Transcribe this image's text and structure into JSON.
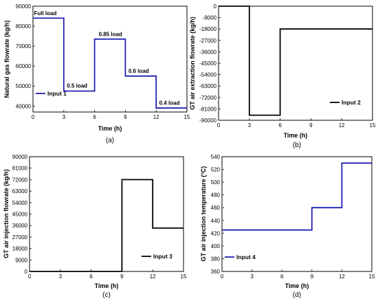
{
  "chart_data": [
    {
      "id": "a",
      "type": "line",
      "caption": "(a)",
      "xlabel": "Time (h)",
      "ylabel": "Natural gas flowrate (kg/h)",
      "xlim": [
        0,
        15
      ],
      "ylim": [
        37000,
        90000
      ],
      "xticks": [
        "0",
        "3",
        "6",
        "9",
        "12",
        "15"
      ],
      "yticks": [
        "40000",
        "50000",
        "60000",
        "70000",
        "80000",
        "90000"
      ],
      "series": [
        {
          "name": "Input 1",
          "color": "#1f1fb4",
          "x": [
            0,
            3,
            3,
            6,
            6,
            9,
            9,
            12,
            12,
            15
          ],
          "y": [
            84000,
            84000,
            47500,
            47500,
            73500,
            73500,
            55000,
            55000,
            39000,
            39000
          ]
        }
      ],
      "annotations": [
        {
          "text": "Full load",
          "x": 0.1,
          "y": 85500
        },
        {
          "text": "0.5 load",
          "x": 3.3,
          "y": 49200
        },
        {
          "text": "0.85 load",
          "x": 6.4,
          "y": 75000
        },
        {
          "text": "0.6 load",
          "x": 9.3,
          "y": 56700
        },
        {
          "text": "0.4 load",
          "x": 12.3,
          "y": 40600
        }
      ],
      "legend_position": "bottom-left"
    },
    {
      "id": "b",
      "type": "line",
      "caption": "(b)",
      "xlabel": "Time (h)",
      "ylabel": "GT air extraction flowrate (kg/h)",
      "xlim": [
        0,
        15
      ],
      "ylim": [
        -90000,
        0
      ],
      "xticks": [
        "0",
        "3",
        "6",
        "9",
        "12",
        "15"
      ],
      "yticks": [
        "0",
        "-9000",
        "-18000",
        "-27000",
        "-36000",
        "-45000",
        "-54000",
        "-63000",
        "-72000",
        "-81000",
        "-90000"
      ],
      "series": [
        {
          "name": "Input 2",
          "color": "#000000",
          "x": [
            0,
            3,
            3,
            6,
            6,
            15
          ],
          "y": [
            0,
            0,
            -86000,
            -86000,
            -18000,
            -18000
          ]
        }
      ],
      "annotations": [],
      "legend_position": "bottom-right"
    },
    {
      "id": "c",
      "type": "line",
      "caption": "(c)",
      "xlabel": "Time (h)",
      "ylabel": "GT air injection flowrate (kg/h)",
      "xlim": [
        0,
        15
      ],
      "ylim": [
        0,
        90000
      ],
      "xticks": [
        "0",
        "3",
        "6",
        "9",
        "12",
        "15"
      ],
      "yticks": [
        "0",
        "9000",
        "18000",
        "27000",
        "36000",
        "45000",
        "54000",
        "63000",
        "72000",
        "81000",
        "90000"
      ],
      "series": [
        {
          "name": "Input 3",
          "color": "#000000",
          "x": [
            0,
            9,
            9,
            12,
            12,
            15
          ],
          "y": [
            0,
            0,
            72000,
            72000,
            34000,
            34000
          ]
        }
      ],
      "annotations": [],
      "legend_position": "bottom-right"
    },
    {
      "id": "d",
      "type": "line",
      "caption": "(d)",
      "xlabel": "Time (h)",
      "ylabel": "GT air injection temperature (°C)",
      "xlim": [
        0,
        15
      ],
      "ylim": [
        360,
        540
      ],
      "xticks": [
        "0",
        "3",
        "6",
        "9",
        "12",
        "15"
      ],
      "yticks": [
        "360",
        "380",
        "400",
        "420",
        "440",
        "460",
        "480",
        "500",
        "520",
        "540"
      ],
      "series": [
        {
          "name": "Input 4",
          "color": "#1f1fb4",
          "x": [
            0,
            9,
            9,
            12,
            12,
            15
          ],
          "y": [
            425,
            425,
            460,
            460,
            530,
            530
          ]
        }
      ],
      "annotations": [],
      "legend_position": "bottom-left"
    }
  ]
}
